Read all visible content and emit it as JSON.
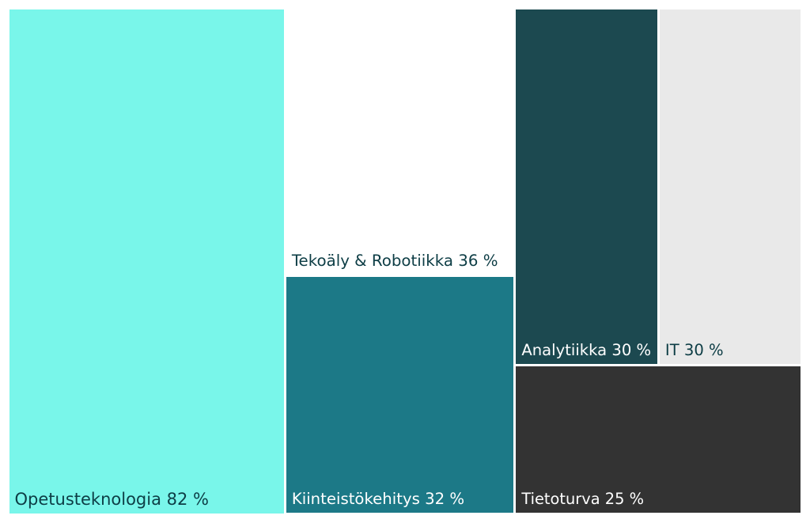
{
  "chart_data": {
    "type": "treemap",
    "title": "",
    "items": [
      {
        "name": "Opetusteknologia",
        "value": 82,
        "label": "Opetusteknologia 82 %",
        "color": "#79f6ea",
        "text_color": "#0d3d45"
      },
      {
        "name": "Tekoäly & Robotiikka",
        "value": 36,
        "label": "Tekoäly & Robotiikka 36 %",
        "color": "#ffffff",
        "text_color": "#0d3d45"
      },
      {
        "name": "Kiinteistökehitys",
        "value": 32,
        "label": "Kiinteistökehitys 32 %",
        "color": "#1c7987",
        "text_color": "#ffffff"
      },
      {
        "name": "Analytiikka",
        "value": 30,
        "label": "Analytiikka 30 %",
        "color": "#1c4950",
        "text_color": "#ffffff"
      },
      {
        "name": "IT",
        "value": 30,
        "label": "IT 30 %",
        "color": "#e9e9e9",
        "text_color": "#0d3d45"
      },
      {
        "name": "Tietoturva",
        "value": 25,
        "label": "Tietoturva 25 %",
        "color": "#333333",
        "text_color": "#ffffff"
      }
    ]
  }
}
